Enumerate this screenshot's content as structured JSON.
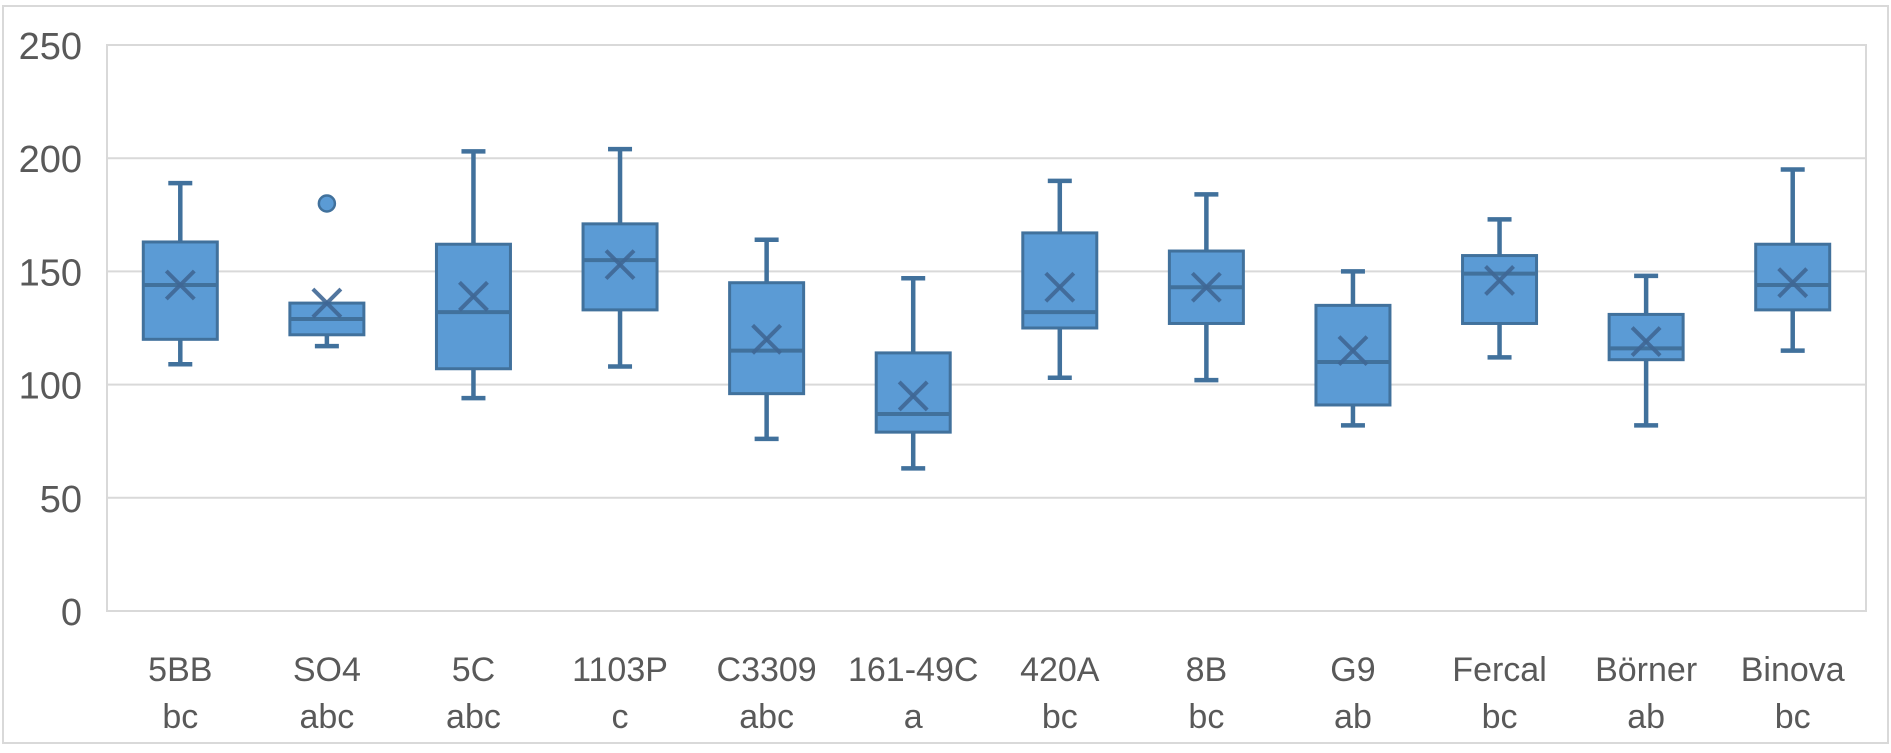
{
  "chart_data": {
    "type": "boxplot",
    "title": "",
    "xlabel": "",
    "ylabel": "",
    "y_axis": {
      "min": 0,
      "max": 250,
      "tick_interval": 50,
      "tick_labels": [
        "0",
        "50",
        "100",
        "150",
        "200",
        "250"
      ]
    },
    "grid": "horizontal",
    "legend": "none",
    "categories": [
      "5BB",
      "SO4",
      "5C",
      "1103P",
      "C3309",
      "161-49C",
      "420A",
      "8B",
      "G9",
      "Fercal",
      "Börner",
      "Binova"
    ],
    "group_letters": [
      "bc",
      "abc",
      "abc",
      "c",
      "abc",
      "a",
      "bc",
      "bc",
      "ab",
      "bc",
      "ab",
      "bc"
    ],
    "boxes": [
      {
        "label": "5BB",
        "group": "bc",
        "whisker_low": 109,
        "q1": 120,
        "median": 144,
        "q3": 163,
        "whisker_high": 189,
        "mean": 144,
        "outliers": []
      },
      {
        "label": "SO4",
        "group": "abc",
        "whisker_low": 117,
        "q1": 122,
        "median": 129,
        "q3": 136,
        "whisker_high": 136,
        "mean": 136,
        "outliers": [
          180
        ]
      },
      {
        "label": "5C",
        "group": "abc",
        "whisker_low": 94,
        "q1": 107,
        "median": 132,
        "q3": 162,
        "whisker_high": 203,
        "mean": 139,
        "outliers": []
      },
      {
        "label": "1103P",
        "group": "c",
        "whisker_low": 108,
        "q1": 133,
        "median": 155,
        "q3": 171,
        "whisker_high": 204,
        "mean": 153,
        "outliers": []
      },
      {
        "label": "C3309",
        "group": "abc",
        "whisker_low": 76,
        "q1": 96,
        "median": 115,
        "q3": 145,
        "whisker_high": 164,
        "mean": 120,
        "outliers": []
      },
      {
        "label": "161-49C",
        "group": "a",
        "whisker_low": 63,
        "q1": 79,
        "median": 87,
        "q3": 114,
        "whisker_high": 147,
        "mean": 95,
        "outliers": []
      },
      {
        "label": "420A",
        "group": "bc",
        "whisker_low": 103,
        "q1": 125,
        "median": 132,
        "q3": 167,
        "whisker_high": 190,
        "mean": 143,
        "outliers": []
      },
      {
        "label": "8B",
        "group": "bc",
        "whisker_low": 102,
        "q1": 127,
        "median": 143,
        "q3": 159,
        "whisker_high": 184,
        "mean": 143,
        "outliers": []
      },
      {
        "label": "G9",
        "group": "ab",
        "whisker_low": 82,
        "q1": 91,
        "median": 110,
        "q3": 135,
        "whisker_high": 150,
        "mean": 115,
        "outliers": []
      },
      {
        "label": "Fercal",
        "group": "bc",
        "whisker_low": 112,
        "q1": 127,
        "median": 149,
        "q3": 157,
        "whisker_high": 173,
        "mean": 146,
        "outliers": []
      },
      {
        "label": "Börner",
        "group": "ab",
        "whisker_low": 82,
        "q1": 111,
        "median": 116,
        "q3": 131,
        "whisker_high": 148,
        "mean": 119,
        "outliers": []
      },
      {
        "label": "Binova",
        "group": "bc",
        "whisker_low": 115,
        "q1": 133,
        "median": 144,
        "q3": 162,
        "whisker_high": 195,
        "mean": 145,
        "outliers": []
      }
    ],
    "colors": {
      "box_fill": "#5B9BD5",
      "box_stroke": "#41719C",
      "mean_marker": "#3F6795",
      "gridline": "#D9D9D9",
      "figure_border": "#D9D9D9",
      "axis_text": "#595959",
      "background": "#FFFFFF"
    }
  }
}
